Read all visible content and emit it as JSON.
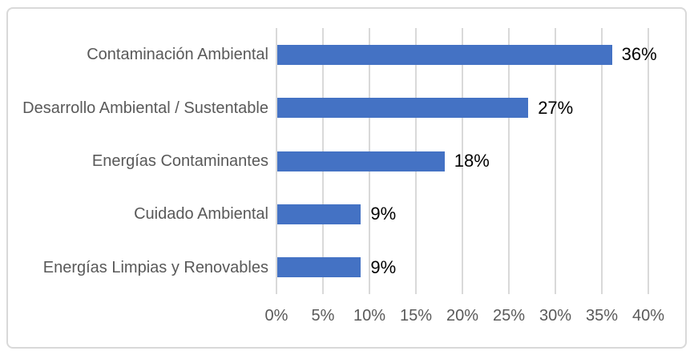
{
  "chart_data": {
    "type": "bar",
    "orientation": "horizontal",
    "title": "",
    "categories": [
      "Contaminación Ambiental",
      "Desarrollo Ambiental / Sustentable",
      "Energías Contaminantes",
      "Cuidado Ambiental",
      "Energías Limpias y Renovables"
    ],
    "values": [
      36,
      27,
      18,
      9,
      9
    ],
    "value_labels": [
      "36%",
      "27%",
      "18%",
      "9%",
      "9%"
    ],
    "x_axis": {
      "min": 0,
      "max": 40,
      "step": 5,
      "tick_values": [
        0,
        5,
        10,
        15,
        20,
        25,
        30,
        35,
        40
      ],
      "tick_labels": [
        "0%",
        "5%",
        "10%",
        "15%",
        "20%",
        "25%",
        "30%",
        "35%",
        "40%"
      ]
    },
    "y_axis": {
      "label": ""
    },
    "grid": "vertical",
    "legend": "none",
    "data_labels": "outside-end",
    "colors": {
      "bar": "#4472C4",
      "gridline": "#D9D9D9",
      "frame_border": "#D9D9D9",
      "axis_text": "#595959",
      "category_text": "#595959",
      "data_label_text": "#000000",
      "background": "#FFFFFF"
    }
  }
}
